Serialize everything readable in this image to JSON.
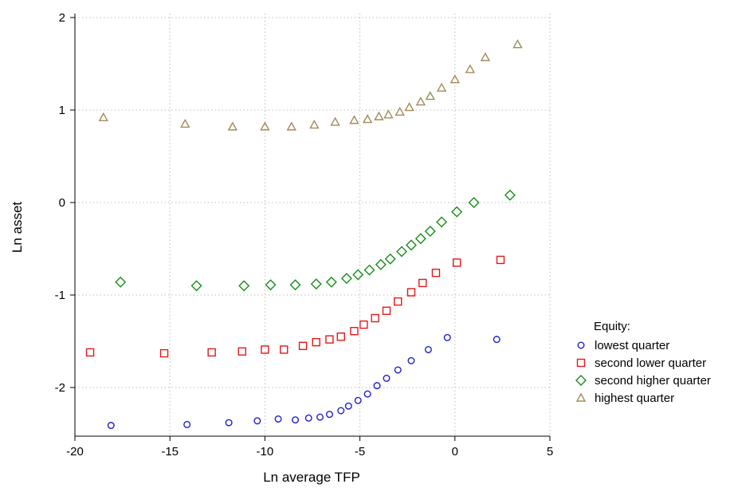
{
  "chart_data": {
    "type": "scatter",
    "title": "",
    "xlabel": "Ln average TFP",
    "ylabel": "Ln asset",
    "xlim": [
      -20,
      5
    ],
    "ylim": [
      -2.5,
      2
    ],
    "xticks": [
      -20,
      -15,
      -10,
      -5,
      0,
      5
    ],
    "yticks": [
      -2,
      -1,
      0,
      1,
      2
    ],
    "grid": true,
    "legend": {
      "title": "Equity:",
      "placement": "right"
    },
    "series": [
      {
        "name": "lowest quarter",
        "marker": "circle",
        "color": "#1f1fcc",
        "points": [
          [
            -18.1,
            -2.41
          ],
          [
            -14.1,
            -2.4
          ],
          [
            -11.9,
            -2.38
          ],
          [
            -10.4,
            -2.36
          ],
          [
            -9.3,
            -2.34
          ],
          [
            -8.4,
            -2.35
          ],
          [
            -7.7,
            -2.33
          ],
          [
            -7.1,
            -2.32
          ],
          [
            -6.6,
            -2.29
          ],
          [
            -6.0,
            -2.25
          ],
          [
            -5.6,
            -2.2
          ],
          [
            -5.1,
            -2.14
          ],
          [
            -4.6,
            -2.07
          ],
          [
            -4.1,
            -1.98
          ],
          [
            -3.6,
            -1.9
          ],
          [
            -3.0,
            -1.81
          ],
          [
            -2.3,
            -1.71
          ],
          [
            -1.4,
            -1.59
          ],
          [
            -0.4,
            -1.46
          ],
          [
            2.2,
            -1.48
          ]
        ]
      },
      {
        "name": "second lower quarter",
        "marker": "square",
        "color": "#e01a1a",
        "points": [
          [
            -19.2,
            -1.62
          ],
          [
            -15.3,
            -1.63
          ],
          [
            -12.8,
            -1.62
          ],
          [
            -11.2,
            -1.61
          ],
          [
            -10.0,
            -1.59
          ],
          [
            -9.0,
            -1.59
          ],
          [
            -8.0,
            -1.55
          ],
          [
            -7.3,
            -1.51
          ],
          [
            -6.6,
            -1.48
          ],
          [
            -6.0,
            -1.45
          ],
          [
            -5.3,
            -1.39
          ],
          [
            -4.8,
            -1.32
          ],
          [
            -4.2,
            -1.25
          ],
          [
            -3.6,
            -1.17
          ],
          [
            -3.0,
            -1.07
          ],
          [
            -2.3,
            -0.97
          ],
          [
            -1.7,
            -0.87
          ],
          [
            -1.0,
            -0.76
          ],
          [
            0.1,
            -0.65
          ],
          [
            2.4,
            -0.62
          ]
        ]
      },
      {
        "name": "second higher quarter",
        "marker": "diamond",
        "color": "#1a8c1a",
        "points": [
          [
            -17.6,
            -0.86
          ],
          [
            -13.6,
            -0.9
          ],
          [
            -11.1,
            -0.9
          ],
          [
            -9.7,
            -0.89
          ],
          [
            -8.4,
            -0.89
          ],
          [
            -7.3,
            -0.88
          ],
          [
            -6.5,
            -0.86
          ],
          [
            -5.7,
            -0.82
          ],
          [
            -5.1,
            -0.78
          ],
          [
            -4.5,
            -0.73
          ],
          [
            -3.9,
            -0.67
          ],
          [
            -3.4,
            -0.61
          ],
          [
            -2.8,
            -0.53
          ],
          [
            -2.3,
            -0.46
          ],
          [
            -1.8,
            -0.39
          ],
          [
            -1.3,
            -0.31
          ],
          [
            -0.7,
            -0.21
          ],
          [
            0.1,
            -0.1
          ],
          [
            1.0,
            0.0
          ],
          [
            2.9,
            0.08
          ]
        ]
      },
      {
        "name": "highest quarter",
        "marker": "triangle",
        "color": "#a08c5a",
        "points": [
          [
            -18.5,
            0.92
          ],
          [
            -14.2,
            0.85
          ],
          [
            -11.7,
            0.82
          ],
          [
            -10.0,
            0.82
          ],
          [
            -8.6,
            0.82
          ],
          [
            -7.4,
            0.84
          ],
          [
            -6.3,
            0.87
          ],
          [
            -5.3,
            0.89
          ],
          [
            -4.6,
            0.9
          ],
          [
            -4.0,
            0.93
          ],
          [
            -3.5,
            0.95
          ],
          [
            -2.9,
            0.98
          ],
          [
            -2.4,
            1.03
          ],
          [
            -1.8,
            1.09
          ],
          [
            -1.3,
            1.15
          ],
          [
            -0.7,
            1.24
          ],
          [
            0.0,
            1.33
          ],
          [
            0.8,
            1.44
          ],
          [
            1.6,
            1.57
          ],
          [
            3.3,
            1.71
          ]
        ]
      }
    ]
  }
}
